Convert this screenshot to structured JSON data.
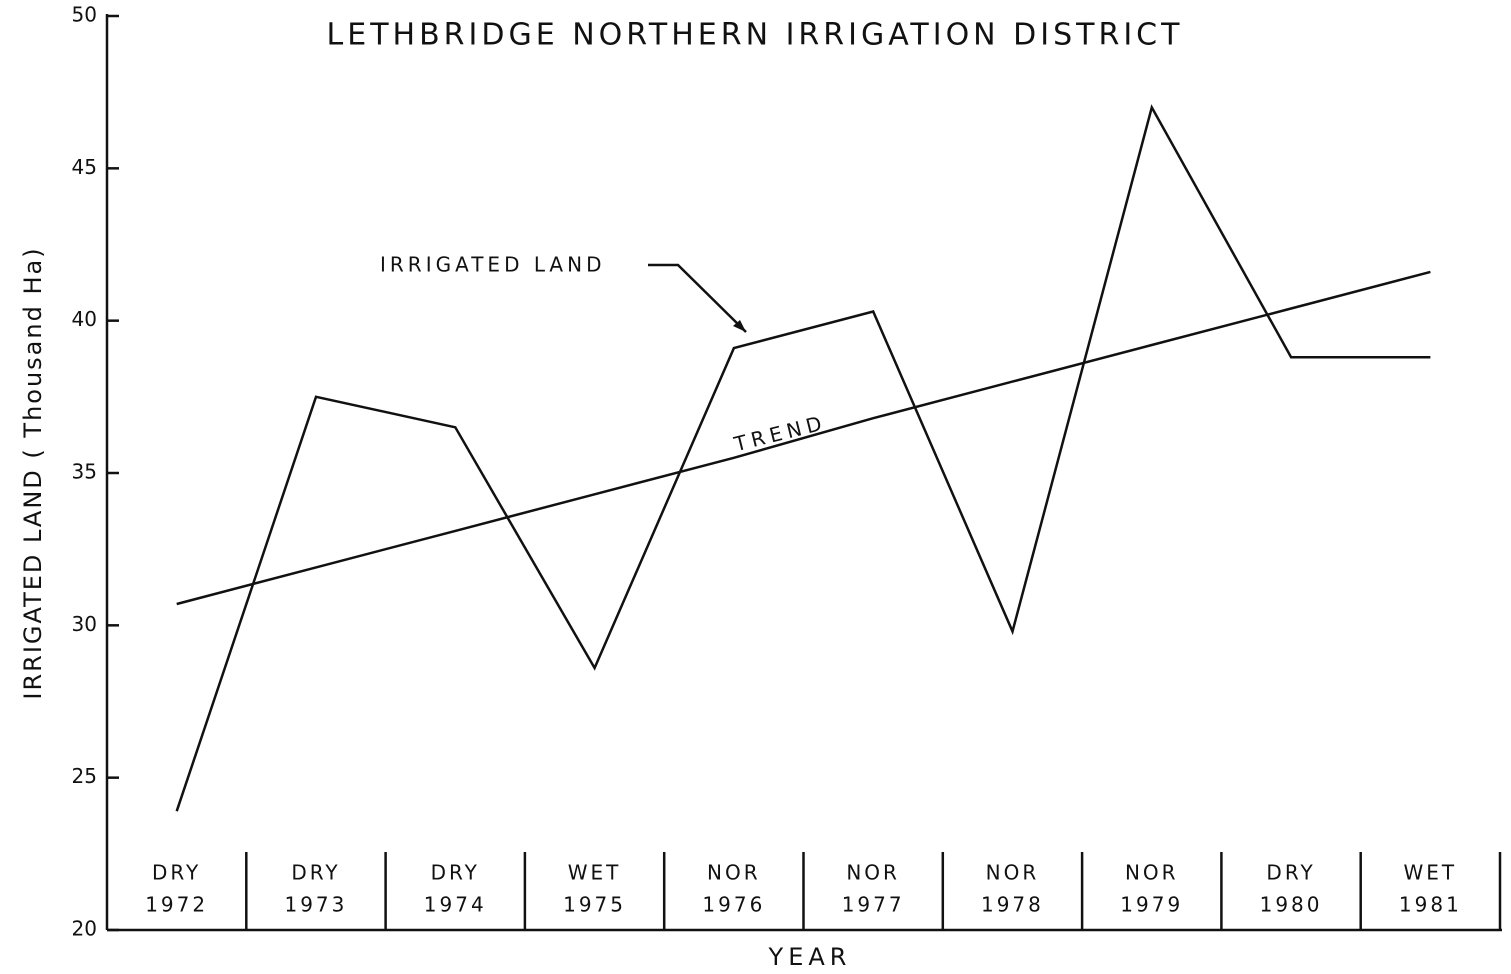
{
  "chart_data": {
    "type": "line",
    "title": "LETHBRIDGE NORTHERN IRRIGATION DISTRICT",
    "x_label": "YEAR",
    "y_label": "IRRIGATED LAND ( Thousand Ha)",
    "categories": [
      "1972",
      "1973",
      "1974",
      "1975",
      "1976",
      "1977",
      "1978",
      "1979",
      "1980",
      "1981"
    ],
    "conditions": [
      "DRY",
      "DRY",
      "DRY",
      "WET",
      "NOR",
      "NOR",
      "NOR",
      "NOR",
      "DRY",
      "WET"
    ],
    "series": [
      {
        "name": "IRRIGATED LAND",
        "color": "#111111",
        "values": [
          23.9,
          37.5,
          36.5,
          28.6,
          39.1,
          40.3,
          29.8,
          47.0,
          38.8,
          38.8
        ]
      },
      {
        "name": "TREND",
        "color": "#111111",
        "values": [
          30.7,
          31.9,
          33.1,
          34.3,
          35.5,
          36.8,
          38.0,
          39.2,
          40.4,
          41.6
        ]
      }
    ],
    "ylim": [
      20,
      50
    ],
    "yticks": [
      20,
      25,
      30,
      35,
      40,
      45,
      50
    ],
    "grid": false
  }
}
